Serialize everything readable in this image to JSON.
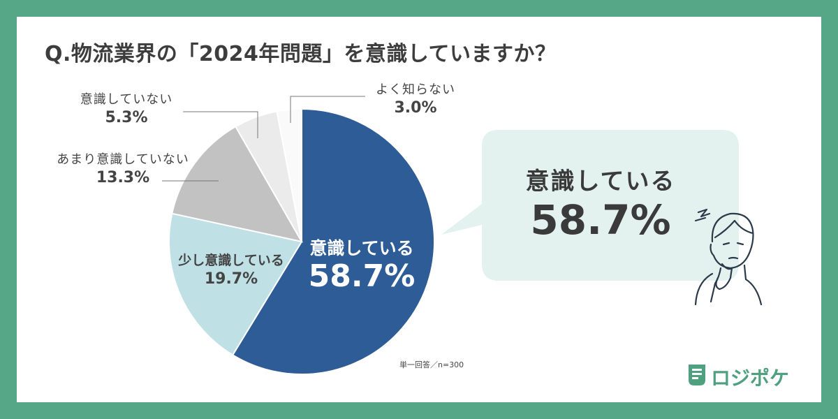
{
  "title": "Q.物流業界の「2024年問題」を意識していますか？",
  "chart_data": {
    "type": "pie",
    "slices": [
      {
        "label": "意識している",
        "value": 58.7,
        "value_label": "58.7%",
        "color": "#2e5c96"
      },
      {
        "label": "少し意識している",
        "value": 19.7,
        "value_label": "19.7%",
        "color": "#bfe0e5"
      },
      {
        "label": "あまり意識していない",
        "value": 13.3,
        "value_label": "13.3%",
        "color": "#c2c2c2"
      },
      {
        "label": "意識していない",
        "value": 5.3,
        "value_label": "5.3%",
        "color": "#ebebeb"
      },
      {
        "label": "よく知らない",
        "value": 3.0,
        "value_label": "3.0%",
        "color": "#fafafa"
      }
    ],
    "start": "12 o'clock",
    "direction": "clockwise"
  },
  "callout": {
    "label": "意識している",
    "value": "58.7%",
    "bubble_color": "#e3f2ee"
  },
  "note": "単一回答／n=300",
  "brand": {
    "name": "ロジポケ",
    "icon": "logipoke-logo-icon",
    "color": "#4fa07f"
  },
  "colors": {
    "frame": "#56a688",
    "card": "#ffffff",
    "text": "#3d3d3d"
  },
  "illustration": "thinking-man-icon"
}
